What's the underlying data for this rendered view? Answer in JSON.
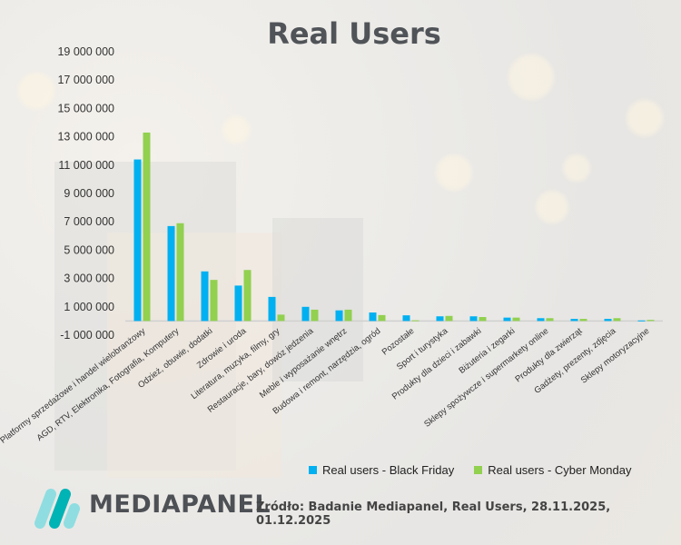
{
  "chart_data": {
    "type": "bar",
    "title": "Real Users",
    "xlabel": "",
    "ylabel": "",
    "ylim": [
      -1000000,
      19000000
    ],
    "yticks": [
      -1000000,
      1000000,
      3000000,
      5000000,
      7000000,
      9000000,
      11000000,
      13000000,
      15000000,
      17000000,
      19000000
    ],
    "ytick_labels": [
      "-1 000 000",
      "1 000 000",
      "3 000 000",
      "5 000 000",
      "7 000 000",
      "9 000 000",
      "11 000 000",
      "13 000 000",
      "15 000 000",
      "17 000 000",
      "19 000 000"
    ],
    "grid": false,
    "legend_position": "bottom-right",
    "categories": [
      "Platformy sprzedażowe i handel wielobranżowy",
      "AGD, RTV, Elektronika, Fotografia, Komputery",
      "Odzież, obuwie, dodatki",
      "Zdrowie i uroda",
      "Literatura, muzyka, filmy, gry",
      "Restauracje, bary, dowóz jedzenia",
      "Meble i wyposażanie wnętrz",
      "Budowa i remont, narzędzia, ogród",
      "Pozostałe",
      "Sport i turystyka",
      "Produkty dla dzieci i zabawki",
      "Biżuteria i zegarki",
      "Sklepy spożywcze i supermarkety online",
      "Produkty dla zwierząt",
      "Gadżety, prezenty, zdjęcia",
      "Sklepy motoryzacyjne"
    ],
    "series": [
      {
        "name": "Real users - Black Friday",
        "color": "#00b0f0",
        "values": [
          11400000,
          6700000,
          3500000,
          2500000,
          1700000,
          1000000,
          750000,
          600000,
          400000,
          330000,
          330000,
          240000,
          200000,
          150000,
          150000,
          40000
        ]
      },
      {
        "name": "Real users - Cyber Monday",
        "color": "#92d050",
        "values": [
          13300000,
          6900000,
          2900000,
          3600000,
          450000,
          800000,
          800000,
          420000,
          50000,
          360000,
          280000,
          240000,
          200000,
          150000,
          200000,
          80000
        ]
      }
    ]
  },
  "footer": {
    "brand": "MEDIAPANEL",
    "source": "Źródło: Badanie Mediapanel, Real Users, 28.11.2025, 01.12.2025"
  }
}
